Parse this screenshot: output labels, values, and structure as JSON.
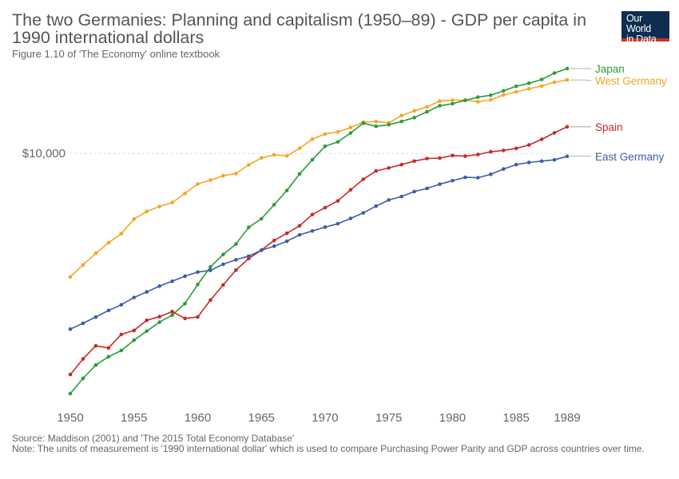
{
  "title": "The two Germanies: Planning and capitalism (1950–89) - GDP per capita in 1990 international dollars",
  "subtitle": "Figure 1.10 of 'The Economy' online textbook",
  "logo": {
    "line1": "Our World",
    "line2": "in Data"
  },
  "source": "Source: Maddison (2001) and 'The 2015 Total Economy Database'",
  "note": "Note: The units of measurement is '1990 international dollar' which is used to compare Purchasing Power Parity and GDP across countries over time.",
  "chart_data": {
    "type": "line",
    "y_scale": "log",
    "ylim": [
      1750,
      17500
    ],
    "y_ticks": [
      {
        "value": 10000,
        "label": "$10,000"
      }
    ],
    "x_ticks": [
      1950,
      1955,
      1960,
      1965,
      1970,
      1975,
      1980,
      1985,
      1989
    ],
    "x": [
      1950,
      1951,
      1952,
      1953,
      1954,
      1955,
      1956,
      1957,
      1958,
      1959,
      1960,
      1961,
      1962,
      1963,
      1964,
      1965,
      1966,
      1967,
      1968,
      1969,
      1970,
      1971,
      1972,
      1973,
      1974,
      1975,
      1976,
      1977,
      1978,
      1979,
      1980,
      1981,
      1982,
      1983,
      1984,
      1985,
      1986,
      1987,
      1988,
      1989
    ],
    "series": [
      {
        "name": "West Germany",
        "color": "#f5a623",
        "values": [
          4281,
          4648,
          5033,
          5412,
          5757,
          6370,
          6708,
          6940,
          7136,
          7591,
          8101,
          8322,
          8578,
          8704,
          9238,
          9690,
          9897,
          9824,
          10360,
          11021,
          11422,
          11584,
          11941,
          12391,
          12436,
          12337,
          12962,
          13389,
          13755,
          14310,
          14409,
          14410,
          14257,
          14444,
          14931,
          15254,
          15590,
          15868,
          16294,
          16558
        ]
      },
      {
        "name": "Japan",
        "color": "#2e9b3c",
        "values": [
          1921,
          2132,
          2336,
          2474,
          2582,
          2771,
          2950,
          3136,
          3293,
          3563,
          4062,
          4584,
          4994,
          5363,
          6016,
          6382,
          7027,
          7750,
          8684,
          9569,
          10500,
          10817,
          11498,
          12301,
          12039,
          12175,
          12447,
          12780,
          13306,
          13871,
          14059,
          14387,
          14711,
          14904,
          15366,
          15856,
          16184,
          16612,
          17354,
          17900
        ]
      },
      {
        "name": "Spain",
        "color": "#c62a2a",
        "values": [
          2189,
          2437,
          2667,
          2627,
          2883,
          2963,
          3177,
          3257,
          3373,
          3219,
          3250,
          3651,
          4051,
          4483,
          4856,
          5144,
          5498,
          5776,
          6082,
          6571,
          6886,
          7215,
          7783,
          8369,
          8863,
          9043,
          9254,
          9482,
          9647,
          9683,
          9854,
          9810,
          9921,
          10111,
          10204,
          10348,
          10592,
          11009,
          11512,
          12000
        ]
      },
      {
        "name": "East Germany",
        "color": "#3d5ea6",
        "values": [
          2990,
          3113,
          3249,
          3399,
          3534,
          3716,
          3861,
          4018,
          4154,
          4301,
          4424,
          4476,
          4668,
          4814,
          4938,
          5138,
          5284,
          5468,
          5714,
          5868,
          6026,
          6166,
          6396,
          6645,
          6960,
          7260,
          7436,
          7690,
          7860,
          8093,
          8291,
          8481,
          8458,
          8658,
          8979,
          9257,
          9392,
          9479,
          9563,
          9800
        ]
      }
    ]
  }
}
